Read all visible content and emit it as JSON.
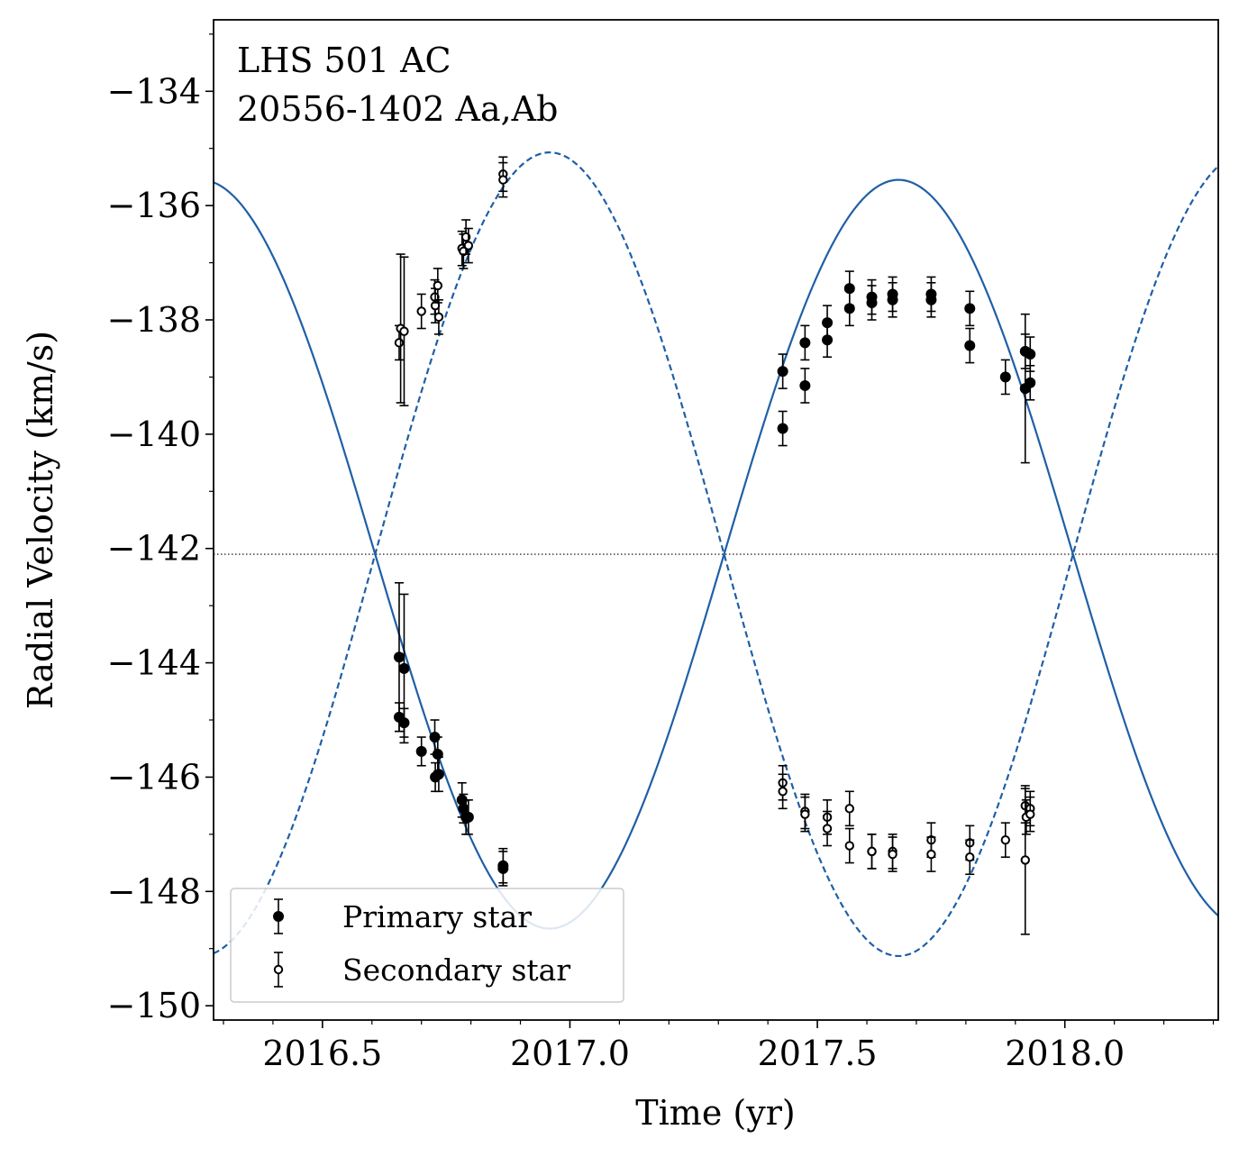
{
  "chart_data": {
    "type": "scatter",
    "title_lines": [
      "LHS 501 AC",
      "20556-1402 Aa,Ab"
    ],
    "xlabel": "Time (yr)",
    "ylabel": "Radial Velocity  (km/s)",
    "xlim": [
      2016.28,
      2018.31
    ],
    "ylim": [
      -150.25,
      -132.75
    ],
    "xticks": [
      2016.5,
      2017.0,
      2017.5,
      2018.0
    ],
    "xtick_labels": [
      "2016.5",
      "2017.0",
      "2017.5",
      "2018.0"
    ],
    "yticks": [
      -134,
      -136,
      -138,
      -140,
      -142,
      -144,
      -146,
      -148,
      -150
    ],
    "ytick_labels": [
      "−134",
      "−136",
      "−138",
      "−140",
      "−142",
      "−144",
      "−146",
      "−148",
      "−150"
    ],
    "systemic_velocity": -142.1,
    "legend": {
      "position": "lower-left",
      "entries": [
        "Primary star",
        "Secondary star"
      ]
    },
    "orbit_model": {
      "period_yr": 1.41,
      "phase_zero_yr": 2016.959,
      "K_primary": 6.55,
      "K_secondary": 7.03,
      "eccentricity": 0.0,
      "line_color": "#1f5fa6"
    },
    "marker_color": "#000000",
    "series": [
      {
        "name": "Primary star",
        "marker": "filled-circle",
        "points": [
          {
            "x": 2016.655,
            "y": -143.9,
            "err": 1.3
          },
          {
            "x": 2016.655,
            "y": -144.95,
            "err": 0.25
          },
          {
            "x": 2016.665,
            "y": -144.1,
            "err": 1.3
          },
          {
            "x": 2016.665,
            "y": -145.05,
            "err": 0.25
          },
          {
            "x": 2016.7,
            "y": -145.55,
            "err": 0.25
          },
          {
            "x": 2016.727,
            "y": -145.3,
            "err": 0.3
          },
          {
            "x": 2016.728,
            "y": -146.0,
            "err": 0.25
          },
          {
            "x": 2016.733,
            "y": -145.6,
            "err": 0.3
          },
          {
            "x": 2016.735,
            "y": -145.95,
            "err": 0.3
          },
          {
            "x": 2016.782,
            "y": -146.4,
            "err": 0.3
          },
          {
            "x": 2016.785,
            "y": -146.55,
            "err": 0.25
          },
          {
            "x": 2016.79,
            "y": -146.7,
            "err": 0.3
          },
          {
            "x": 2016.795,
            "y": -146.7,
            "err": 0.3
          },
          {
            "x": 2016.865,
            "y": -147.55,
            "err": 0.3
          },
          {
            "x": 2016.865,
            "y": -147.6,
            "err": 0.3
          },
          {
            "x": 2017.43,
            "y": -138.9,
            "err": 0.3
          },
          {
            "x": 2017.43,
            "y": -139.9,
            "err": 0.3
          },
          {
            "x": 2017.475,
            "y": -138.4,
            "err": 0.3
          },
          {
            "x": 2017.475,
            "y": -139.15,
            "err": 0.3
          },
          {
            "x": 2017.52,
            "y": -138.05,
            "err": 0.3
          },
          {
            "x": 2017.52,
            "y": -138.35,
            "err": 0.3
          },
          {
            "x": 2017.565,
            "y": -137.45,
            "err": 0.3
          },
          {
            "x": 2017.565,
            "y": -137.8,
            "err": 0.3
          },
          {
            "x": 2017.61,
            "y": -137.6,
            "err": 0.3
          },
          {
            "x": 2017.61,
            "y": -137.7,
            "err": 0.3
          },
          {
            "x": 2017.652,
            "y": -137.55,
            "err": 0.3
          },
          {
            "x": 2017.652,
            "y": -137.65,
            "err": 0.3
          },
          {
            "x": 2017.73,
            "y": -137.55,
            "err": 0.3
          },
          {
            "x": 2017.73,
            "y": -137.65,
            "err": 0.3
          },
          {
            "x": 2017.808,
            "y": -137.8,
            "err": 0.3
          },
          {
            "x": 2017.808,
            "y": -138.45,
            "err": 0.3
          },
          {
            "x": 2017.88,
            "y": -139.0,
            "err": 0.3
          },
          {
            "x": 2017.92,
            "y": -138.55,
            "err": 0.3
          },
          {
            "x": 2017.92,
            "y": -139.2,
            "err": 1.3
          },
          {
            "x": 2017.93,
            "y": -138.6,
            "err": 0.3
          },
          {
            "x": 2017.93,
            "y": -139.1,
            "err": 0.3
          }
        ]
      },
      {
        "name": "Secondary star",
        "marker": "open-circle",
        "points": [
          {
            "x": 2016.655,
            "y": -138.4,
            "err": 0.3
          },
          {
            "x": 2016.658,
            "y": -138.15,
            "err": 1.3
          },
          {
            "x": 2016.665,
            "y": -138.2,
            "err": 1.3
          },
          {
            "x": 2016.7,
            "y": -137.85,
            "err": 0.3
          },
          {
            "x": 2016.727,
            "y": -137.6,
            "err": 0.3
          },
          {
            "x": 2016.728,
            "y": -137.75,
            "err": 0.3
          },
          {
            "x": 2016.733,
            "y": -137.4,
            "err": 0.3
          },
          {
            "x": 2016.735,
            "y": -137.95,
            "err": 0.3
          },
          {
            "x": 2016.782,
            "y": -136.75,
            "err": 0.3
          },
          {
            "x": 2016.785,
            "y": -136.8,
            "err": 0.3
          },
          {
            "x": 2016.79,
            "y": -136.55,
            "err": 0.3
          },
          {
            "x": 2016.795,
            "y": -136.7,
            "err": 0.3
          },
          {
            "x": 2016.865,
            "y": -135.45,
            "err": 0.3
          },
          {
            "x": 2016.865,
            "y": -135.55,
            "err": 0.3
          },
          {
            "x": 2017.43,
            "y": -146.1,
            "err": 0.3
          },
          {
            "x": 2017.43,
            "y": -146.25,
            "err": 0.3
          },
          {
            "x": 2017.475,
            "y": -146.6,
            "err": 0.3
          },
          {
            "x": 2017.475,
            "y": -146.65,
            "err": 0.3
          },
          {
            "x": 2017.52,
            "y": -146.7,
            "err": 0.3
          },
          {
            "x": 2017.52,
            "y": -146.9,
            "err": 0.3
          },
          {
            "x": 2017.565,
            "y": -146.55,
            "err": 0.3
          },
          {
            "x": 2017.565,
            "y": -147.2,
            "err": 0.3
          },
          {
            "x": 2017.61,
            "y": -147.3,
            "err": 0.3
          },
          {
            "x": 2017.61,
            "y": -147.3,
            "err": 0.3
          },
          {
            "x": 2017.652,
            "y": -147.3,
            "err": 0.3
          },
          {
            "x": 2017.652,
            "y": -147.35,
            "err": 0.3
          },
          {
            "x": 2017.73,
            "y": -147.1,
            "err": 0.3
          },
          {
            "x": 2017.73,
            "y": -147.35,
            "err": 0.3
          },
          {
            "x": 2017.808,
            "y": -147.15,
            "err": 0.3
          },
          {
            "x": 2017.808,
            "y": -147.4,
            "err": 0.3
          },
          {
            "x": 2017.88,
            "y": -147.1,
            "err": 0.3
          },
          {
            "x": 2017.92,
            "y": -146.5,
            "err": 0.3
          },
          {
            "x": 2017.92,
            "y": -147.45,
            "err": 1.3
          },
          {
            "x": 2017.922,
            "y": -146.7,
            "err": 0.3
          },
          {
            "x": 2017.93,
            "y": -146.55,
            "err": 0.3
          },
          {
            "x": 2017.93,
            "y": -146.65,
            "err": 0.3
          }
        ]
      }
    ]
  }
}
